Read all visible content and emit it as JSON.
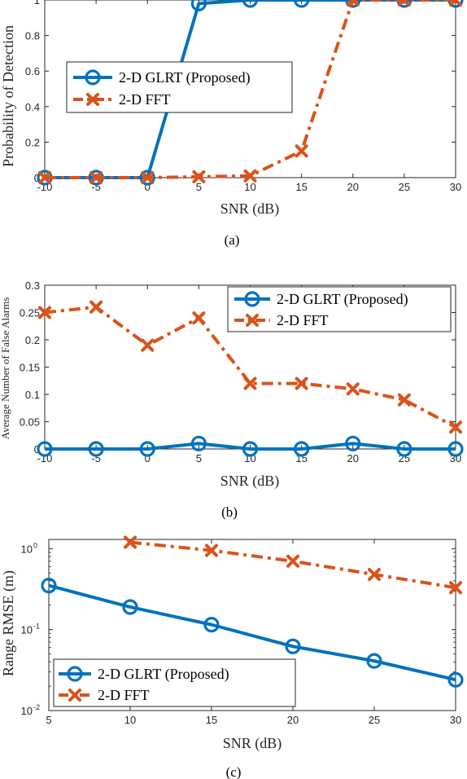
{
  "colors": {
    "glrt": "#0072BD",
    "fft": "#D95319",
    "axis": "#262626"
  },
  "chart_data": [
    {
      "type": "line",
      "caption": "(a)",
      "xlabel": "SNR (dB)",
      "ylabel": "Probability of Detection",
      "x": [
        -10,
        -5,
        0,
        5,
        10,
        15,
        20,
        25,
        30
      ],
      "xticks": [
        "-10",
        "-5",
        "0",
        "5",
        "10",
        "15",
        "20",
        "25",
        "30"
      ],
      "yticks": [
        "0",
        "0.2",
        "0.4",
        "0.6",
        "0.8",
        "1"
      ],
      "xlim": [
        -10,
        30
      ],
      "ylim": [
        0,
        1
      ],
      "yscale": "linear",
      "legend_position": "center-left",
      "series": [
        {
          "name": "2-D GLRT (Proposed)",
          "marker": "circle",
          "line": "solid",
          "values": [
            0,
            0,
            0,
            0.98,
            1,
            1,
            1,
            1,
            1
          ]
        },
        {
          "name": "2-D FFT",
          "marker": "x",
          "line": "dash-dot",
          "values": [
            0,
            0,
            0,
            0.005,
            0.01,
            0.15,
            1,
            1,
            1
          ]
        }
      ]
    },
    {
      "type": "line",
      "caption": "(b)",
      "xlabel": "SNR (dB)",
      "ylabel": "Average Number of False Alarms",
      "x": [
        -10,
        -5,
        0,
        5,
        10,
        15,
        20,
        25,
        30
      ],
      "xticks": [
        "-10",
        "-5",
        "0",
        "5",
        "10",
        "15",
        "20",
        "25",
        "30"
      ],
      "yticks": [
        "0",
        "0.05",
        "0.1",
        "0.15",
        "0.2",
        "0.25",
        "0.3"
      ],
      "xlim": [
        -10,
        30
      ],
      "ylim": [
        0,
        0.3
      ],
      "yscale": "linear",
      "legend_position": "top-right",
      "series": [
        {
          "name": "2-D GLRT (Proposed)",
          "marker": "circle",
          "line": "solid",
          "values": [
            0,
            0,
            0,
            0.01,
            0,
            0,
            0.01,
            0,
            0
          ]
        },
        {
          "name": "2-D FFT",
          "marker": "x",
          "line": "dash-dot",
          "values": [
            0.25,
            0.26,
            0.19,
            0.24,
            0.12,
            0.12,
            0.11,
            0.09,
            0.04
          ]
        }
      ]
    },
    {
      "type": "line",
      "caption": "(c)",
      "xlabel": "SNR (dB)",
      "ylabel": "Range RMSE (m)",
      "xticks": [
        "5",
        "10",
        "15",
        "20",
        "25",
        "30"
      ],
      "xtick_values": [
        5,
        10,
        15,
        20,
        25,
        30
      ],
      "ytick_bases": [
        "10",
        "10",
        "10"
      ],
      "ytick_exponents": [
        "-2",
        "-1",
        "0"
      ],
      "ytick_values": [
        0.01,
        0.1,
        1
      ],
      "xlim": [
        5,
        30
      ],
      "ylim": [
        0.01,
        1.3
      ],
      "yscale": "log",
      "legend_position": "bottom-left",
      "series": [
        {
          "name": "2-D GLRT (Proposed)",
          "marker": "circle",
          "line": "solid",
          "x": [
            5,
            10,
            15,
            20,
            25,
            30
          ],
          "values": [
            0.35,
            0.19,
            0.115,
            0.062,
            0.041,
            0.024
          ]
        },
        {
          "name": "2-D FFT",
          "marker": "x",
          "line": "dash-dot",
          "x": [
            10,
            15,
            20,
            25,
            30
          ],
          "values": [
            1.2,
            0.95,
            0.7,
            0.48,
            0.33
          ]
        }
      ]
    }
  ]
}
